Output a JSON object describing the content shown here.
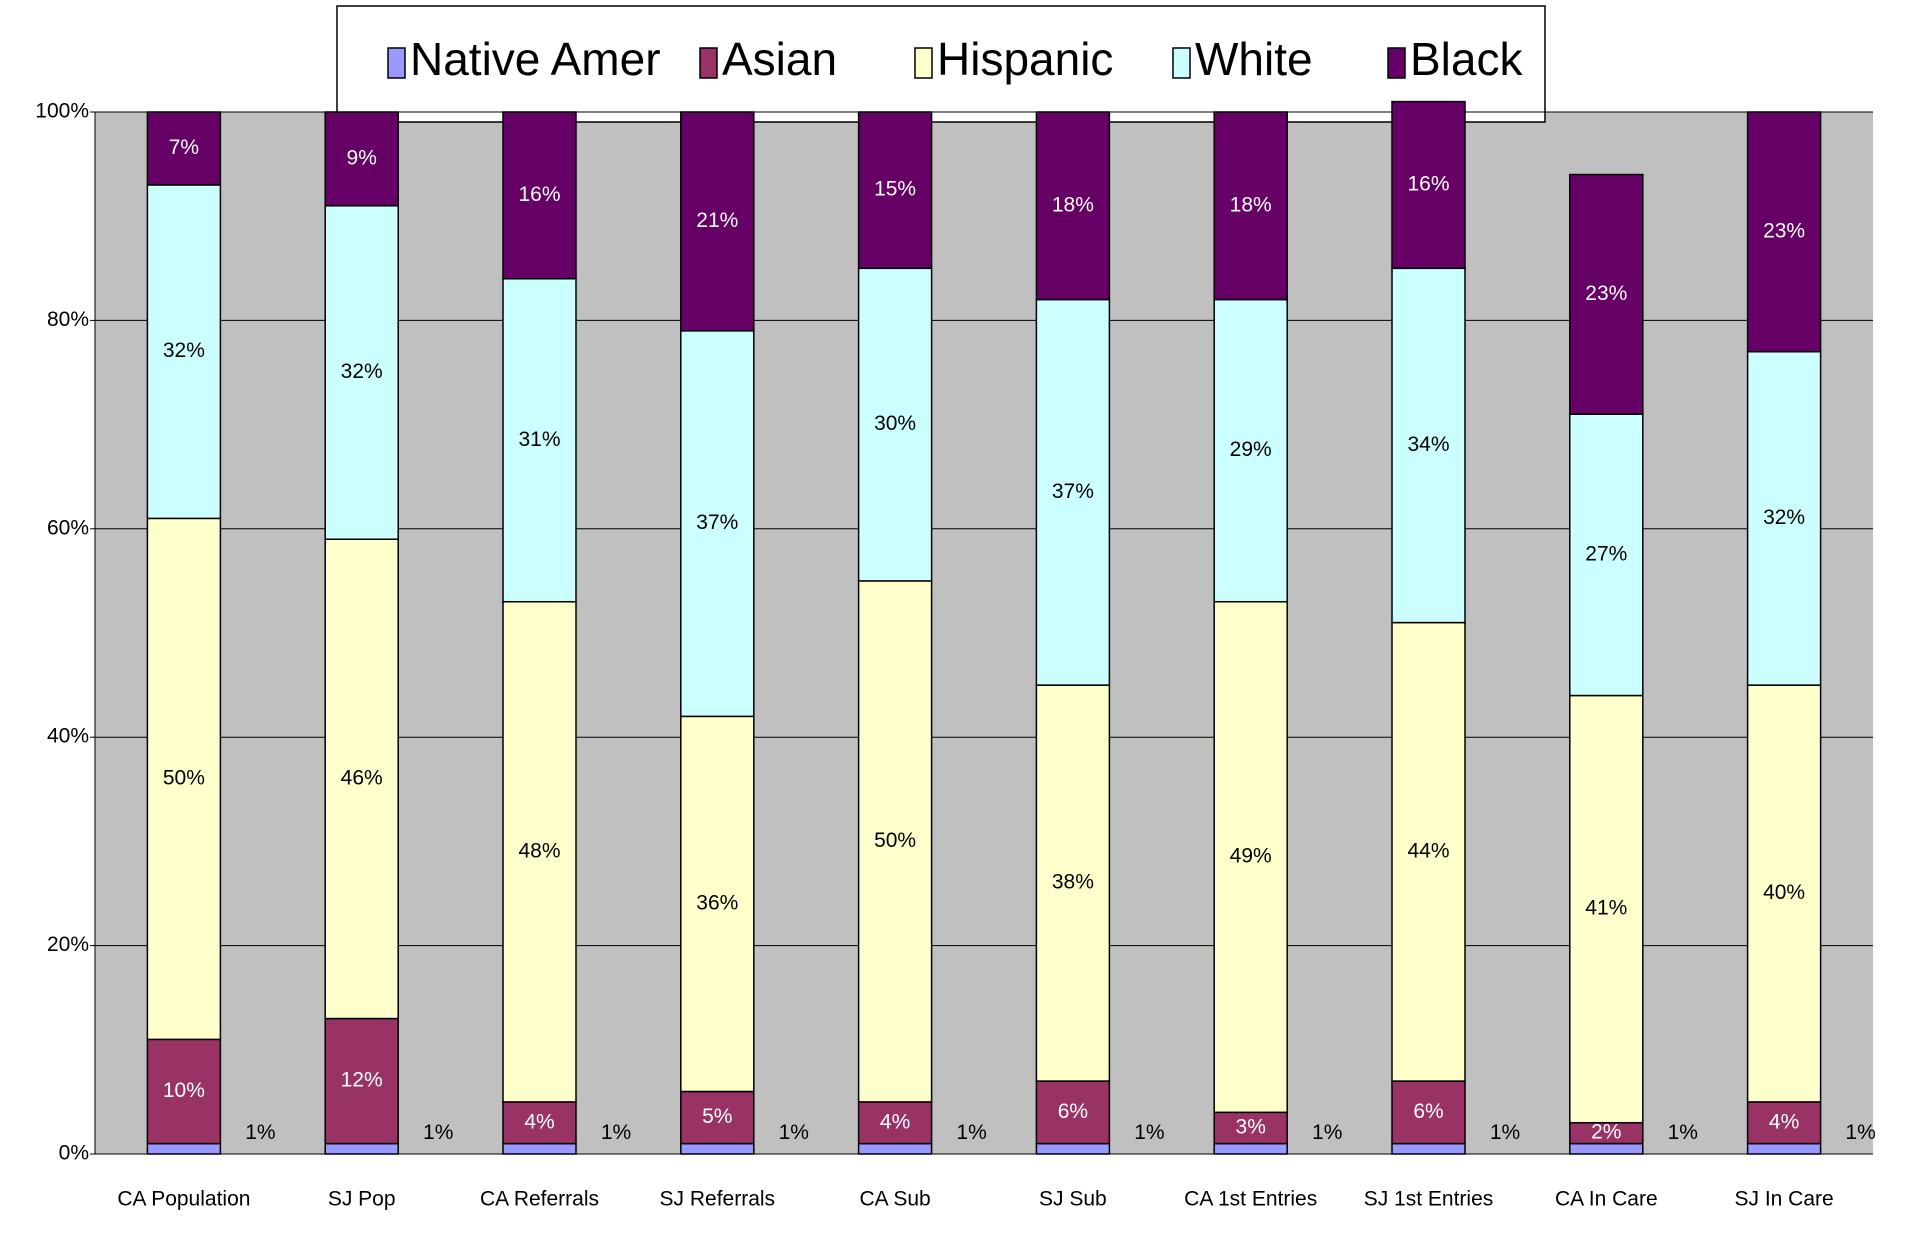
{
  "chart_data": {
    "type": "stacked_bar",
    "categories": [
      "CA Population",
      "SJ Pop",
      "CA Referrals",
      "SJ Referrals",
      "CA Sub",
      "SJ Sub",
      "CA 1st Entries",
      "SJ 1st Entries",
      "CA In Care",
      "SJ In Care"
    ],
    "series": [
      {
        "name": "Native Amer",
        "color": "#9999ff",
        "values": [
          1,
          1,
          1,
          1,
          1,
          1,
          1,
          1,
          1,
          1
        ],
        "value_labels": [
          "1%",
          "1%",
          "1%",
          "1%",
          "1%",
          "1%",
          "1%",
          "1%",
          "1%",
          "1%"
        ]
      },
      {
        "name": "Asian",
        "color": "#993366",
        "values": [
          10,
          12,
          4,
          5,
          4,
          6,
          3,
          6,
          2,
          4
        ],
        "value_labels": [
          "10%",
          "12%",
          "4%",
          "5%",
          "4%",
          "6%",
          "3%",
          "6%",
          "2%",
          "4%"
        ]
      },
      {
        "name": "Hispanic",
        "color": "#ffffcc",
        "values": [
          50,
          46,
          48,
          36,
          50,
          38,
          49,
          44,
          41,
          40
        ],
        "value_labels": [
          "50%",
          "46%",
          "48%",
          "36%",
          "50%",
          "38%",
          "49%",
          "44%",
          "41%",
          "40%"
        ]
      },
      {
        "name": "White",
        "color": "#ccffff",
        "values": [
          32,
          32,
          31,
          37,
          30,
          37,
          29,
          34,
          27,
          32
        ],
        "value_labels": [
          "32%",
          "32%",
          "31%",
          "37%",
          "30%",
          "37%",
          "29%",
          "34%",
          "27%",
          "32%"
        ]
      },
      {
        "name": "Black",
        "color": "#660066",
        "values": [
          7,
          9,
          16,
          21,
          15,
          18,
          18,
          16,
          23,
          23
        ],
        "value_labels": [
          "7%",
          "9%",
          "16%",
          "21%",
          "15%",
          "18%",
          "18%",
          "16%",
          "23%",
          "23%"
        ]
      }
    ],
    "ylim": [
      0,
      100
    ],
    "yticks": [
      {
        "value": 0,
        "label": "0%"
      },
      {
        "value": 20,
        "label": "20%"
      },
      {
        "value": 40,
        "label": "40%"
      },
      {
        "value": 60,
        "label": "60%"
      },
      {
        "value": 80,
        "label": "80%"
      },
      {
        "value": 100,
        "label": "100%"
      }
    ],
    "grid": true,
    "legend": "top"
  }
}
